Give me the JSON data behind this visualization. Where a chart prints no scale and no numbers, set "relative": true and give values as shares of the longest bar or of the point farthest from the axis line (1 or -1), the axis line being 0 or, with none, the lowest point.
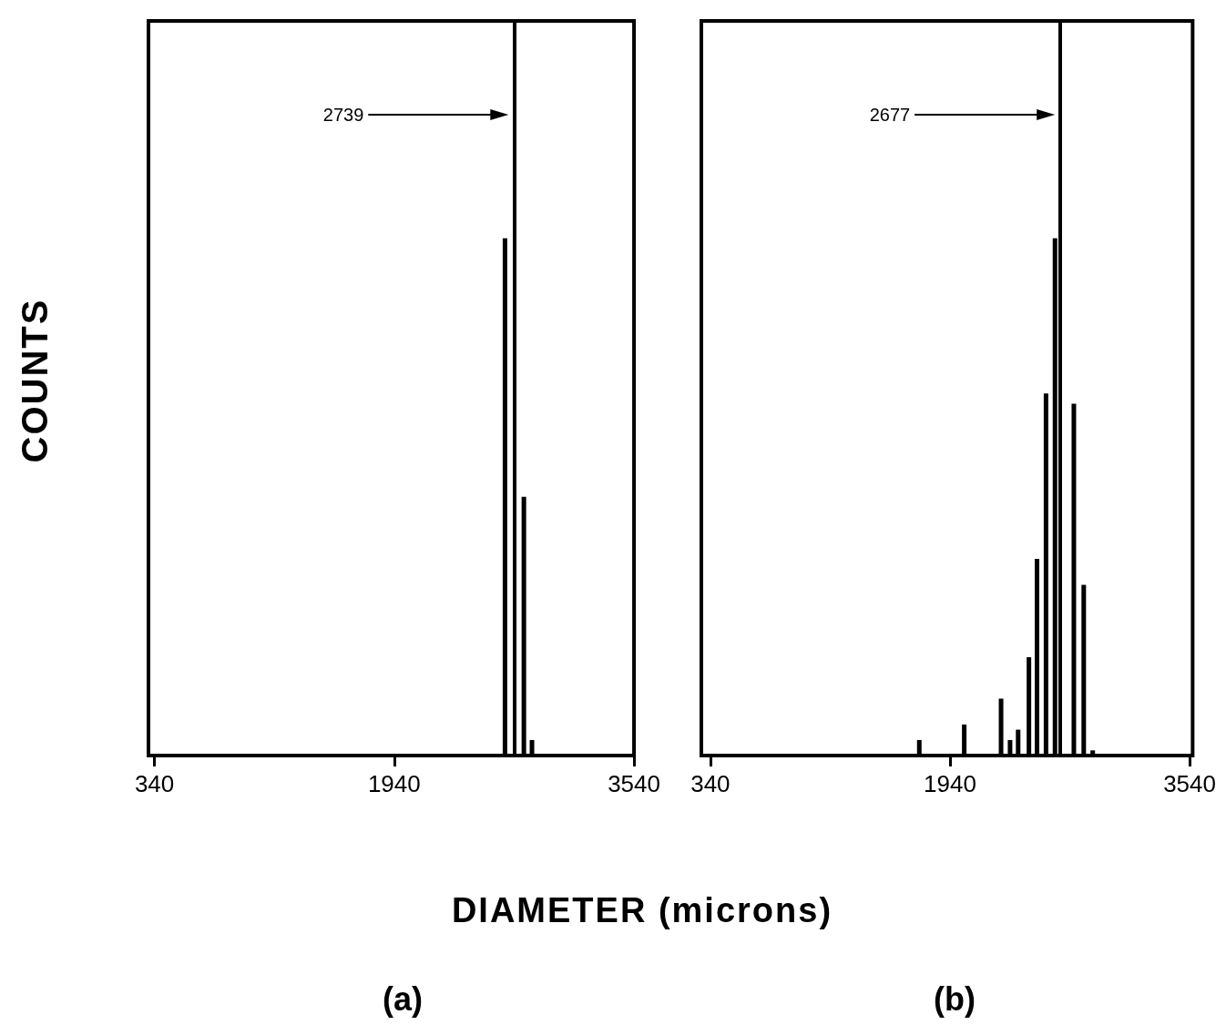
{
  "chart_data": [
    {
      "type": "bar",
      "title": "(a)",
      "xlabel": "DIAMETER (microns)",
      "ylabel": "COUNTS",
      "relative": true,
      "x": [
        2679,
        2805,
        2859
      ],
      "values": [
        1,
        0.5,
        0.03
      ],
      "color": "#000000",
      "xlim": [
        300,
        3540
      ],
      "xticks": [
        340,
        1940,
        3540
      ],
      "ref_lines": [
        {
          "axis": "x",
          "value": 2739,
          "label": "2739"
        }
      ]
    },
    {
      "type": "bar",
      "title": "(b)",
      "relative": true,
      "x": [
        1735,
        2035,
        2281,
        2341,
        2395,
        2467,
        2521,
        2581,
        2641,
        2767,
        2833,
        2893
      ],
      "values": [
        0.03,
        0.06,
        0.11,
        0.03,
        0.05,
        0.19,
        0.38,
        0.7,
        1,
        0.68,
        0.33,
        0.01
      ],
      "color": "#000000",
      "xlim": [
        280,
        3560
      ],
      "xticks": [
        340,
        1940,
        3540
      ],
      "ref_lines": [
        {
          "axis": "x",
          "value": 2677,
          "label": "2677"
        }
      ]
    }
  ]
}
